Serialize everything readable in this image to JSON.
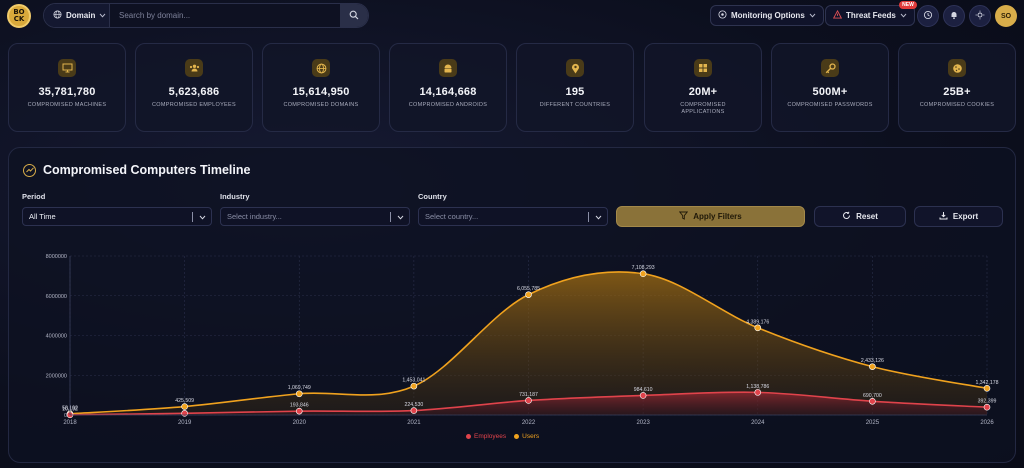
{
  "header": {
    "logo_text": "BO\nCK",
    "domain_select": "Domain",
    "search_placeholder": "Search by domain...",
    "monitoring_options": "Monitoring Options",
    "threat_feeds": "Threat Feeds",
    "new_badge": "NEW",
    "avatar": "SO"
  },
  "stats": [
    {
      "icon": "monitor-icon",
      "value": "35,781,780",
      "label": "COMPROMISED MACHINES"
    },
    {
      "icon": "users-icon",
      "value": "5,623,686",
      "label": "COMPROMISED EMPLOYEES"
    },
    {
      "icon": "globe-icon",
      "value": "15,614,950",
      "label": "COMPROMISED DOMAINS"
    },
    {
      "icon": "android-icon",
      "value": "14,164,668",
      "label": "COMPROMISED ANDROIDS"
    },
    {
      "icon": "map-pin-icon",
      "value": "195",
      "label": "DIFFERENT COUNTRIES"
    },
    {
      "icon": "grid-icon",
      "value": "20M+",
      "label": "COMPROMISED APPLICATIONS"
    },
    {
      "icon": "key-icon",
      "value": "500M+",
      "label": "COMPROMISED PASSWORDS"
    },
    {
      "icon": "cookie-icon",
      "value": "25B+",
      "label": "COMPROMISED COOKIES"
    }
  ],
  "timeline": {
    "title": "Compromised Computers Timeline",
    "filters": {
      "period_label": "Period",
      "period_value": "All Time",
      "industry_label": "Industry",
      "industry_placeholder": "Select industry...",
      "country_label": "Country",
      "country_placeholder": "Select country..."
    },
    "apply_label": "Apply Filters",
    "reset_label": "Reset",
    "export_label": "Export"
  },
  "colors": {
    "accent": "#d9a93b",
    "users": "#f0a21e",
    "employees": "#e0434b"
  },
  "chart_data": {
    "type": "area",
    "x": [
      "2018",
      "2019",
      "2020",
      "2021",
      "2022",
      "2023",
      "2024",
      "2025",
      "2026"
    ],
    "y_ticks": [
      "8000000",
      "6000000",
      "4000000",
      "2000000",
      "0"
    ],
    "ylim": [
      0,
      8000000
    ],
    "series": [
      {
        "name": "Users",
        "color": "#f0a21e",
        "values": [
          58192,
          425509,
          1069749,
          1453041,
          6055785,
          7108293,
          4389176,
          2433126,
          1342178
        ],
        "labels": [
          "58,192",
          "425,509",
          "1,069,749",
          "1,453,041",
          "6,055,785",
          "7,108,293",
          "4,389,176",
          "2,433,126",
          "1,342,178"
        ]
      },
      {
        "name": "Employees",
        "color": "#e0434b",
        "values": [
          10192,
          83000,
          193846,
          224530,
          731187,
          984610,
          1138786,
          690700,
          392399
        ],
        "labels": [
          "10,192",
          "",
          "193,846",
          "224,530",
          "731,187",
          "984,610",
          "1,138,786",
          "690,700",
          "392,399"
        ]
      }
    ],
    "legend": [
      "Employees",
      "Users"
    ],
    "legend_position": "bottom",
    "grid": true
  }
}
